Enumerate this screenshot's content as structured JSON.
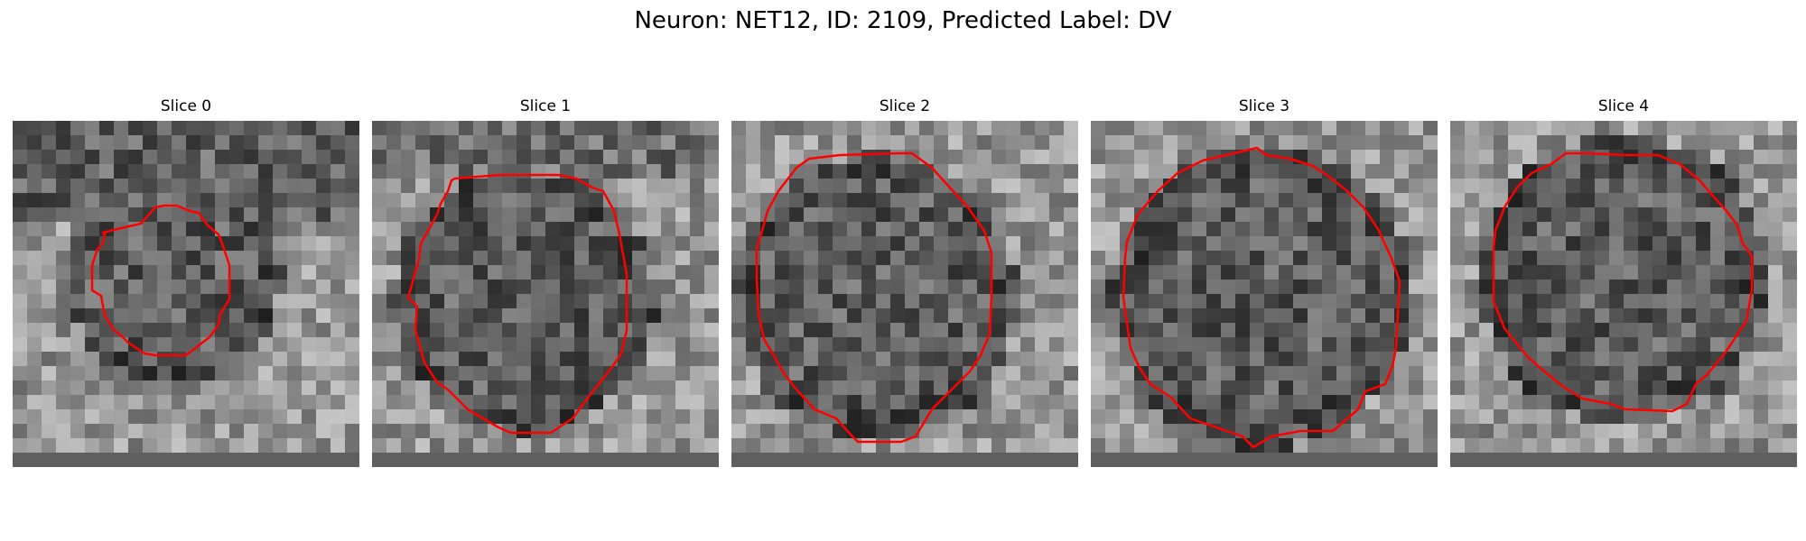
{
  "figure": {
    "title": "Neuron: NET12, ID: 2109, Predicted Label: DV"
  },
  "colors": {
    "contour": "#ff0000",
    "background": "#ffffff"
  },
  "panels": [
    {
      "title": "Slice 0"
    },
    {
      "title": "Slice 1"
    },
    {
      "title": "Slice 2"
    },
    {
      "title": "Slice 3"
    },
    {
      "title": "Slice 4"
    }
  ]
}
